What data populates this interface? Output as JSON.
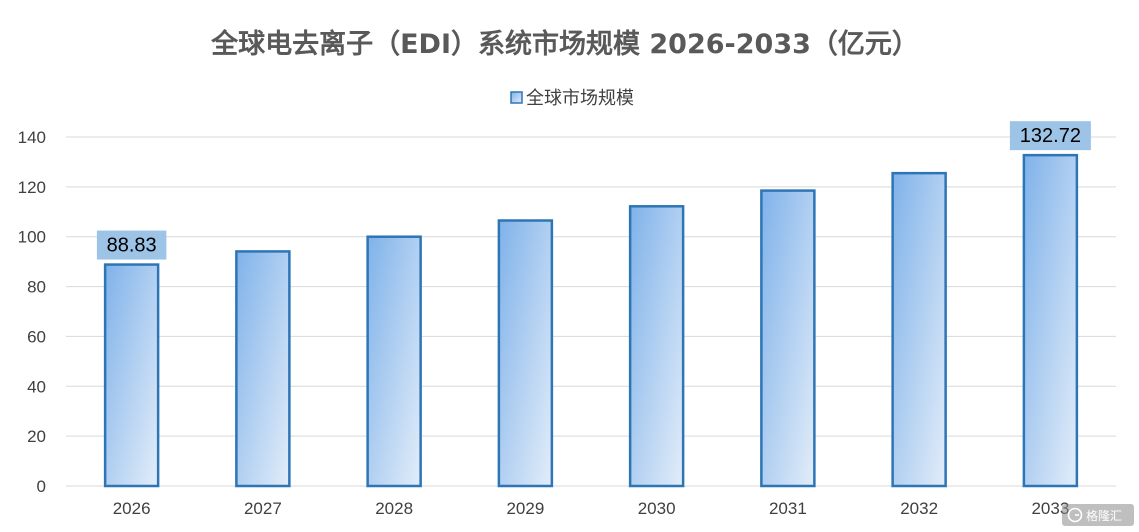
{
  "chart_data": {
    "type": "bar",
    "title": "全球电去离子（EDI）系统市场规模 2026-2033（亿元）",
    "categories": [
      "2026",
      "2027",
      "2028",
      "2029",
      "2030",
      "2031",
      "2032",
      "2033"
    ],
    "series": [
      {
        "name": "全球市场规模",
        "values": [
          88.83,
          94.1,
          100.0,
          106.5,
          112.2,
          118.5,
          125.5,
          132.72
        ]
      }
    ],
    "data_labels": [
      {
        "category": "2026",
        "text": "88.83"
      },
      {
        "category": "2033",
        "text": "132.72"
      }
    ],
    "ylim": [
      0,
      140
    ],
    "yticks": [
      "0",
      "20",
      "40",
      "60",
      "80",
      "100",
      "120",
      "140"
    ],
    "xlabel": "",
    "ylabel": "",
    "grid": true,
    "legend_position": "top",
    "colors": {
      "bar_fill_start": "#7fb2ea",
      "bar_fill_end": "#e3edf9",
      "bar_stroke": "#2e75b6",
      "label_box": "#9dc3e6",
      "grid": "#d9d9d9",
      "title": "#595959"
    }
  },
  "watermark": {
    "text": "格隆汇",
    "icon": "glh-logo-icon"
  }
}
